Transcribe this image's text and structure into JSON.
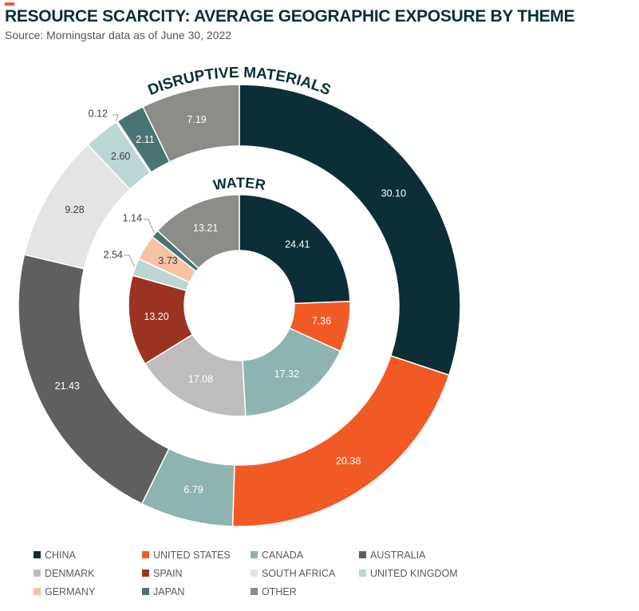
{
  "header": {
    "title": "RESOURCE SCARCITY: AVERAGE GEOGRAPHIC EXPOSURE BY THEME",
    "subtitle": "Source: Morningstar data as of June 30, 2022",
    "accent_color": "#f15a24"
  },
  "chart_data": {
    "type": "donut",
    "categories": [
      "CHINA",
      "UNITED STATES",
      "CANADA",
      "AUSTRALIA",
      "DENMARK",
      "SPAIN",
      "SOUTH AFRICA",
      "UNITED KINGDOM",
      "GERMANY",
      "JAPAN",
      "OTHER"
    ],
    "colors": {
      "CHINA": "#0d2e36",
      "UNITED STATES": "#f15a24",
      "CANADA": "#8fb3b1",
      "AUSTRALIA": "#5f5f5f",
      "DENMARK": "#bdbdbd",
      "SPAIN": "#9a3321",
      "SOUTH AFRICA": "#e4e4e4",
      "UNITED KINGDOM": "#bcd5d5",
      "GERMANY": "#f7c1a4",
      "JAPAN": "#4a7474",
      "OTHER": "#8c8c89"
    },
    "series": [
      {
        "name": "DISRUPTIVE MATERIALS",
        "ring": "outer",
        "slices": [
          {
            "category": "CHINA",
            "value": 30.1,
            "label": "30.10"
          },
          {
            "category": "UNITED STATES",
            "value": 20.38,
            "label": "20.38"
          },
          {
            "category": "CANADA",
            "value": 6.79,
            "label": "6.79"
          },
          {
            "category": "AUSTRALIA",
            "value": 21.43,
            "label": "21.43"
          },
          {
            "category": "SOUTH AFRICA",
            "value": 9.28,
            "label": "9.28"
          },
          {
            "category": "UNITED KINGDOM",
            "value": 2.6,
            "label": "2.60"
          },
          {
            "category": "GERMANY",
            "value": 0.12,
            "label": "0.12"
          },
          {
            "category": "JAPAN",
            "value": 2.11,
            "label": "2.11"
          },
          {
            "category": "OTHER",
            "value": 7.19,
            "label": "7.19"
          }
        ]
      },
      {
        "name": "WATER",
        "ring": "inner",
        "slices": [
          {
            "category": "CHINA",
            "value": 24.41,
            "label": "24.41"
          },
          {
            "category": "UNITED STATES",
            "value": 7.36,
            "label": "7.36"
          },
          {
            "category": "CANADA",
            "value": 17.32,
            "label": "17.32"
          },
          {
            "category": "DENMARK",
            "value": 17.08,
            "label": "17.08"
          },
          {
            "category": "SPAIN",
            "value": 13.2,
            "label": "13.20"
          },
          {
            "category": "UNITED KINGDOM",
            "value": 2.54,
            "label": "2.54"
          },
          {
            "category": "GERMANY",
            "value": 3.73,
            "label": "3.73"
          },
          {
            "category": "JAPAN",
            "value": 1.14,
            "label": "1.14"
          },
          {
            "category": "OTHER",
            "value": 13.21,
            "label": "13.21"
          }
        ]
      }
    ],
    "legend": {
      "placement": "bottom",
      "entries": [
        "CHINA",
        "UNITED STATES",
        "CANADA",
        "AUSTRALIA",
        "DENMARK",
        "SPAIN",
        "SOUTH AFRICA",
        "UNITED KINGDOM",
        "GERMANY",
        "JAPAN",
        "OTHER"
      ]
    }
  }
}
